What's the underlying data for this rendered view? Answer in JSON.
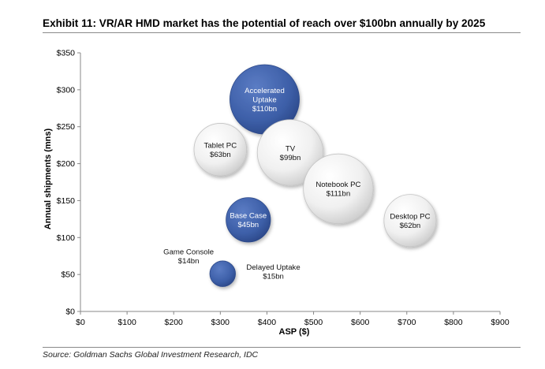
{
  "title": "Exhibit 11: VR/AR HMD market has the potential of reach over $100bn annually by 2025",
  "source": "Source: Goldman Sachs Global Investment Research, IDC",
  "colors": {
    "blue": "#3d5fa8",
    "grey": "#e6e6e6",
    "axis": "#888888"
  },
  "chart_data": {
    "type": "bubble",
    "xlabel": "ASP ($)",
    "ylabel": "Annual shipments (mns)",
    "xlim": [
      0,
      900
    ],
    "ylim": [
      0,
      350
    ],
    "x_ticks": [
      0,
      100,
      200,
      300,
      400,
      500,
      600,
      700,
      800,
      900
    ],
    "x_tick_labels": [
      "$0",
      "$100",
      "$200",
      "$300",
      "$400",
      "$500",
      "$600",
      "$700",
      "$800",
      "$900"
    ],
    "y_ticks": [
      0,
      50,
      100,
      150,
      200,
      250,
      300,
      350
    ],
    "y_tick_labels": [
      "$0",
      "$50",
      "$100",
      "$150",
      "$200",
      "$250",
      "$300",
      "$350"
    ],
    "grid": false,
    "bubbles": [
      {
        "name": "Accelerated Uptake",
        "lines": [
          "Accelerated",
          "Uptake",
          "$110bn"
        ],
        "x": 395,
        "y": 287,
        "size_bn": 110,
        "style": "blue",
        "label": "inside"
      },
      {
        "name": "Tablet PC",
        "lines": [
          "Tablet PC",
          "$63bn"
        ],
        "x": 300,
        "y": 219,
        "size_bn": 63,
        "style": "grey",
        "label": "inside"
      },
      {
        "name": "TV",
        "lines": [
          "TV",
          "$99bn"
        ],
        "x": 450,
        "y": 215,
        "size_bn": 99,
        "style": "grey",
        "label": "inside"
      },
      {
        "name": "Notebook PC",
        "lines": [
          "Notebook PC",
          "$111bn"
        ],
        "x": 553,
        "y": 166,
        "size_bn": 111,
        "style": "grey",
        "label": "inside"
      },
      {
        "name": "Base Case",
        "lines": [
          "Base Case",
          "$45bn"
        ],
        "x": 360,
        "y": 124,
        "size_bn": 45,
        "style": "blue",
        "label": "inside"
      },
      {
        "name": "Desktop PC",
        "lines": [
          "Desktop PC",
          "$62bn"
        ],
        "x": 707,
        "y": 123,
        "size_bn": 62,
        "style": "grey",
        "label": "inside"
      },
      {
        "name": "Game Console",
        "lines": [
          "Game Console",
          "$14bn"
        ],
        "x": 232,
        "y": 75,
        "size_bn": 14,
        "style": "none",
        "label": "text-only"
      },
      {
        "name": "Delayed Uptake",
        "lines": [
          "Delayed Uptake",
          "$15bn"
        ],
        "x": 305,
        "y": 51,
        "size_bn": 15,
        "style": "blue",
        "label": "right"
      }
    ]
  }
}
